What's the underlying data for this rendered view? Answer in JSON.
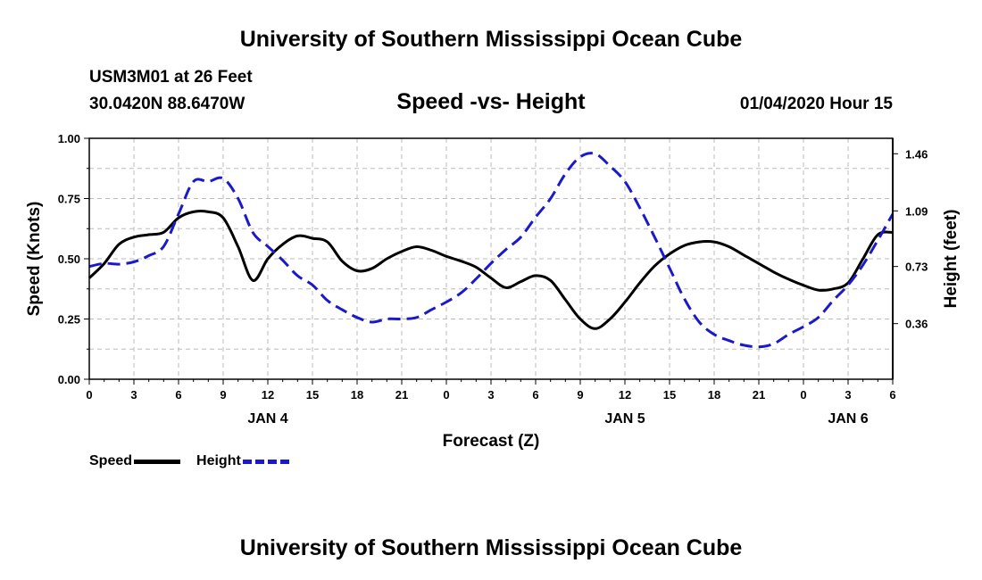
{
  "header": {
    "title_top": "University of Southern Mississippi Ocean Cube",
    "station": "USM3M01 at 26 Feet",
    "coords": "30.0420N 88.6470W",
    "datetime": "01/04/2020 Hour 15",
    "title_bottom": "University of Southern Mississippi Ocean Cube"
  },
  "legend": {
    "speed_label": "Speed",
    "height_label": "Height"
  },
  "colors": {
    "speed": "#000000",
    "height": "#1a1acc",
    "grid": "#bbbbbb"
  },
  "chart_data": {
    "type": "line",
    "title": "Speed -vs- Height",
    "xlabel": "Forecast (Z)",
    "ylabel": "Speed (Knots)",
    "y2label": "Height (feet)",
    "x_range_hours": [
      0,
      54
    ],
    "x_tick_hours": [
      0,
      3,
      6,
      9,
      12,
      15,
      18,
      21,
      24,
      27,
      30,
      33,
      36,
      39,
      42,
      45,
      48,
      51,
      54
    ],
    "x_tick_labels": [
      "0",
      "3",
      "6",
      "9",
      "12",
      "15",
      "18",
      "21",
      "0",
      "3",
      "6",
      "9",
      "12",
      "15",
      "18",
      "21",
      "0",
      "3",
      "6"
    ],
    "day_labels": [
      {
        "hour": 12,
        "label": "JAN 4"
      },
      {
        "hour": 36,
        "label": "JAN 5"
      },
      {
        "hour": 51,
        "label": "JAN 6"
      }
    ],
    "ylim": [
      0,
      1
    ],
    "y_ticks": [
      0,
      0.25,
      0.5,
      0.75,
      1.0
    ],
    "y_tick_labels": [
      "0.00",
      "0.25",
      "0.50",
      "0.75",
      "1.00"
    ],
    "y2lim": [
      0,
      1.56
    ],
    "y2_ticks": [
      0.36,
      0.73,
      1.09,
      1.46
    ],
    "y2_tick_labels": [
      "0.36",
      "0.73",
      "1.09",
      "1.46"
    ],
    "grid": true,
    "series": [
      {
        "name": "Speed",
        "axis": "left",
        "style": "solid",
        "x": [
          0,
          1,
          2,
          3,
          4,
          5,
          6,
          7,
          8,
          9,
          10,
          11,
          12,
          13,
          14,
          15,
          16,
          17,
          18,
          19,
          20,
          21,
          22,
          23,
          24,
          25,
          26,
          27,
          28,
          29,
          30,
          31,
          32,
          33,
          34,
          35,
          36,
          37,
          38,
          39,
          40,
          41,
          42,
          43,
          44,
          45,
          46,
          47,
          48,
          49,
          50,
          51,
          52,
          53,
          54
        ],
        "values": [
          0.42,
          0.48,
          0.56,
          0.59,
          0.6,
          0.61,
          0.67,
          0.695,
          0.695,
          0.67,
          0.55,
          0.41,
          0.5,
          0.56,
          0.595,
          0.585,
          0.57,
          0.49,
          0.45,
          0.46,
          0.5,
          0.53,
          0.55,
          0.535,
          0.51,
          0.49,
          0.465,
          0.42,
          0.38,
          0.405,
          0.43,
          0.41,
          0.33,
          0.25,
          0.21,
          0.25,
          0.32,
          0.4,
          0.47,
          0.52,
          0.555,
          0.57,
          0.57,
          0.55,
          0.515,
          0.48,
          0.445,
          0.415,
          0.39,
          0.37,
          0.375,
          0.4,
          0.5,
          0.6,
          0.61
        ]
      },
      {
        "name": "Height",
        "axis": "right",
        "style": "dashed",
        "x": [
          0,
          1,
          2,
          3,
          4,
          5,
          6,
          7,
          8,
          9,
          10,
          11,
          12,
          13,
          14,
          15,
          16,
          17,
          18,
          19,
          20,
          21,
          22,
          23,
          24,
          25,
          26,
          27,
          28,
          29,
          30,
          31,
          32,
          33,
          34,
          35,
          36,
          37,
          38,
          39,
          40,
          41,
          42,
          43,
          44,
          45,
          46,
          47,
          48,
          49,
          50,
          51,
          52,
          53,
          54
        ],
        "values": [
          0.73,
          0.75,
          0.745,
          0.76,
          0.8,
          0.86,
          1.07,
          1.28,
          1.28,
          1.3,
          1.17,
          0.95,
          0.86,
          0.77,
          0.67,
          0.61,
          0.51,
          0.45,
          0.4,
          0.37,
          0.39,
          0.39,
          0.4,
          0.45,
          0.5,
          0.56,
          0.65,
          0.75,
          0.84,
          0.92,
          1.05,
          1.17,
          1.33,
          1.44,
          1.46,
          1.38,
          1.28,
          1.11,
          0.92,
          0.72,
          0.52,
          0.37,
          0.29,
          0.25,
          0.22,
          0.21,
          0.23,
          0.29,
          0.34,
          0.4,
          0.51,
          0.61,
          0.74,
          0.9,
          1.07
        ]
      }
    ]
  }
}
